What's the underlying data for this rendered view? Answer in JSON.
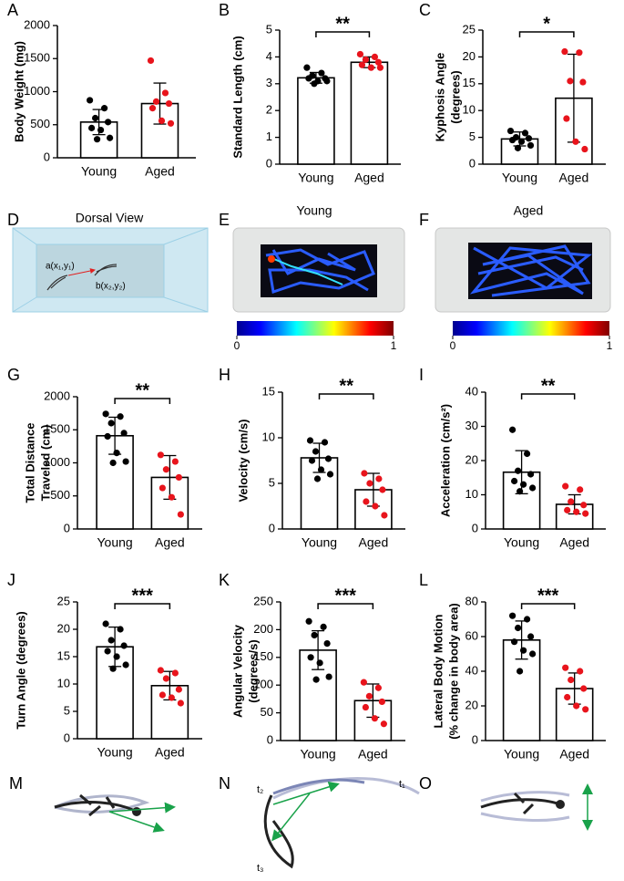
{
  "chart_data": [
    {
      "type": "bar",
      "panel": "A",
      "ylabel": [
        "Body Weight (mg)"
      ],
      "categories": [
        "Young",
        "Aged"
      ],
      "values": [
        540,
        820
      ],
      "errors": [
        190,
        310
      ],
      "points": [
        [
          870,
          750,
          600,
          540,
          450,
          420,
          300,
          280
        ],
        [
          1470,
          980,
          850,
          820,
          750,
          560,
          520
        ]
      ],
      "colors": [
        "#000000",
        "#e8141c"
      ],
      "ylim": [
        0,
        2000
      ],
      "yticks": [
        0,
        500,
        1000,
        1500,
        2000
      ]
    },
    {
      "type": "bar",
      "panel": "B",
      "ylabel": [
        "Standard Length (cm)"
      ],
      "categories": [
        "Young",
        "Aged"
      ],
      "values": [
        3.22,
        3.8
      ],
      "errors": [
        0.2,
        0.2
      ],
      "points": [
        [
          3.6,
          3.4,
          3.3,
          3.2,
          3.2,
          3.1,
          3.1,
          3.0
        ],
        [
          4.1,
          4.0,
          3.9,
          3.8,
          3.7,
          3.6,
          3.6
        ]
      ],
      "colors": [
        "#000000",
        "#e8141c"
      ],
      "ylim": [
        0,
        5
      ],
      "yticks": [
        0,
        1,
        2,
        3,
        4,
        5
      ],
      "significance": "**"
    },
    {
      "type": "bar",
      "panel": "C",
      "ylabel": [
        "Kyphosis Angle",
        "(degrees)"
      ],
      "categories": [
        "Young",
        "Aged"
      ],
      "values": [
        4.7,
        12.3
      ],
      "errors": [
        1.3,
        8.2
      ],
      "points": [
        [
          6.2,
          5.8,
          5.0,
          4.8,
          4.5,
          4.2,
          3.5,
          3.0
        ],
        [
          21,
          20.8,
          15.5,
          15.3,
          8.5,
          4.2,
          2.8
        ]
      ],
      "colors": [
        "#000000",
        "#e8141c"
      ],
      "ylim": [
        0,
        25
      ],
      "yticks": [
        0,
        5,
        10,
        15,
        20,
        25
      ],
      "significance": "*"
    },
    {
      "type": "bar",
      "panel": "G",
      "ylabel": [
        "Total Distance",
        "Traveled (cm)"
      ],
      "categories": [
        "Young",
        "Aged"
      ],
      "values": [
        1410,
        780
      ],
      "errors": [
        280,
        330
      ],
      "points": [
        [
          1740,
          1700,
          1600,
          1450,
          1400,
          1150,
          1020,
          1000
        ],
        [
          1120,
          1020,
          900,
          780,
          620,
          480,
          220
        ]
      ],
      "colors": [
        "#000000",
        "#e8141c"
      ],
      "ylim": [
        0,
        2000
      ],
      "yticks": [
        0,
        500,
        1000,
        1500,
        2000
      ],
      "significance": "**"
    },
    {
      "type": "bar",
      "panel": "H",
      "ylabel": [
        "Velocity (cm/s)"
      ],
      "categories": [
        "Young",
        "Aged"
      ],
      "values": [
        7.8,
        4.3
      ],
      "errors": [
        1.6,
        1.8
      ],
      "points": [
        [
          9.7,
          9.5,
          8.5,
          7.7,
          7.5,
          6.5,
          6.0,
          5.5
        ],
        [
          6.1,
          5.5,
          5.0,
          4.3,
          3.0,
          2.5,
          1.5
        ]
      ],
      "colors": [
        "#000000",
        "#e8141c"
      ],
      "ylim": [
        0,
        15
      ],
      "yticks": [
        0,
        5,
        10,
        15
      ],
      "significance": "**"
    },
    {
      "type": "bar",
      "panel": "I",
      "ylabel": [
        "Acceleration (cm/s²)"
      ],
      "categories": [
        "Young",
        "Aged"
      ],
      "values": [
        16.6,
        7.2
      ],
      "errors": [
        6.3,
        2.8
      ],
      "points": [
        [
          29,
          22,
          17,
          16,
          14,
          13,
          12,
          11
        ],
        [
          12.5,
          11.5,
          8,
          7,
          5.5,
          5,
          4.5
        ]
      ],
      "colors": [
        "#000000",
        "#e8141c"
      ],
      "ylim": [
        0,
        40
      ],
      "yticks": [
        0,
        10,
        20,
        30,
        40
      ],
      "significance": "**"
    },
    {
      "type": "bar",
      "panel": "J",
      "ylabel": [
        "Turn Angle (degrees)"
      ],
      "categories": [
        "Young",
        "Aged"
      ],
      "values": [
        16.8,
        9.7
      ],
      "errors": [
        3.6,
        2.6
      ],
      "points": [
        [
          21,
          20,
          18,
          17,
          16,
          15,
          13.5,
          12.8
        ],
        [
          12.5,
          12,
          11,
          9,
          8,
          7.5,
          6.5
        ]
      ],
      "colors": [
        "#000000",
        "#e8141c"
      ],
      "ylim": [
        0,
        25
      ],
      "yticks": [
        0,
        5,
        10,
        15,
        20,
        25
      ],
      "significance": "***"
    },
    {
      "type": "bar",
      "panel": "K",
      "ylabel": [
        "Angular Velocity",
        "(degrees/s)"
      ],
      "categories": [
        "Young",
        "Aged"
      ],
      "values": [
        163,
        72
      ],
      "errors": [
        35,
        30
      ],
      "points": [
        [
          215,
          205,
          190,
          175,
          150,
          140,
          115,
          110
        ],
        [
          105,
          95,
          80,
          70,
          60,
          40,
          30
        ]
      ],
      "colors": [
        "#000000",
        "#e8141c"
      ],
      "ylim": [
        0,
        250
      ],
      "yticks": [
        0,
        50,
        100,
        150,
        200,
        250
      ],
      "significance": "***"
    },
    {
      "type": "bar",
      "panel": "L",
      "ylabel": [
        "Lateral Body Motion",
        "(% change in body area)"
      ],
      "categories": [
        "Young",
        "Aged"
      ],
      "values": [
        58,
        30
      ],
      "errors": [
        11,
        9
      ],
      "points": [
        [
          72,
          70,
          65,
          60,
          57,
          52,
          50,
          40
        ],
        [
          42,
          40,
          35,
          30,
          25,
          20,
          18
        ]
      ],
      "colors": [
        "#000000",
        "#e8141c"
      ],
      "ylim": [
        0,
        80
      ],
      "yticks": [
        0,
        20,
        40,
        60,
        80
      ],
      "significance": "***"
    }
  ],
  "illustrations": {
    "D": {
      "panel": "D",
      "title": "Dorsal View",
      "point_a": "a(x₁,y₁)",
      "point_b": "b(x₂,y₂)"
    },
    "E": {
      "panel": "E",
      "title": "Young",
      "colorbar_ticks": [
        0,
        1
      ]
    },
    "F": {
      "panel": "F",
      "title": "Aged",
      "colorbar_ticks": [
        0,
        1
      ]
    },
    "M": {
      "panel": "M"
    },
    "N": {
      "panel": "N",
      "labels": [
        "t₁",
        "t₂",
        "t₃"
      ]
    },
    "O": {
      "panel": "O"
    }
  }
}
